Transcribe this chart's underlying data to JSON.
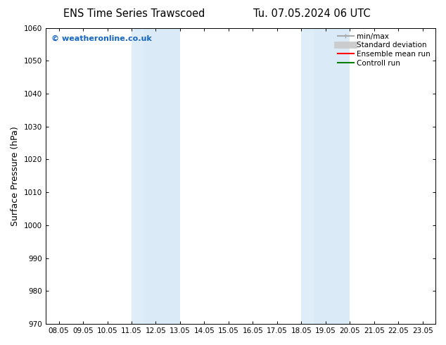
{
  "title_left": "ENS Time Series Trawscoed",
  "title_right": "Tu. 07.05.2024 06 UTC",
  "ylabel": "Surface Pressure (hPa)",
  "xlim": [
    7.5,
    23.583
  ],
  "ylim": [
    970,
    1060
  ],
  "yticks": [
    970,
    980,
    990,
    1000,
    1010,
    1020,
    1030,
    1040,
    1050,
    1060
  ],
  "xticks": [
    8.05,
    9.05,
    10.05,
    11.05,
    12.05,
    13.05,
    14.05,
    15.05,
    16.05,
    17.05,
    18.05,
    19.05,
    20.05,
    21.05,
    22.05,
    23.05
  ],
  "xticklabels": [
    "08.05",
    "09.05",
    "10.05",
    "11.05",
    "12.05",
    "13.05",
    "14.05",
    "15.05",
    "16.05",
    "17.05",
    "18.05",
    "19.05",
    "20.05",
    "21.05",
    "22.05",
    "23.05"
  ],
  "shaded_regions": [
    {
      "x_start": 11.05,
      "x_end": 11.55,
      "color": "#deedf8"
    },
    {
      "x_start": 11.55,
      "x_end": 13.05,
      "color": "#daeaf7"
    },
    {
      "x_start": 18.05,
      "x_end": 18.55,
      "color": "#deedf8"
    },
    {
      "x_start": 18.55,
      "x_end": 20.05,
      "color": "#daeaf7"
    }
  ],
  "background_color": "#ffffff",
  "watermark_text": "© weatheronline.co.uk",
  "watermark_color": "#1565c0",
  "legend_entries": [
    {
      "label": "min/max",
      "color": "#aaaaaa",
      "lw": 1.5,
      "linestyle": "-"
    },
    {
      "label": "Standard deviation",
      "color": "#cccccc",
      "lw": 7,
      "linestyle": "-"
    },
    {
      "label": "Ensemble mean run",
      "color": "#ff0000",
      "lw": 1.5,
      "linestyle": "-"
    },
    {
      "label": "Controll run",
      "color": "#008000",
      "lw": 1.5,
      "linestyle": "-"
    }
  ],
  "tick_color": "#000000",
  "title_fontsize": 10.5,
  "label_fontsize": 9,
  "tick_fontsize": 7.5,
  "legend_fontsize": 7.5,
  "watermark_fontsize": 8
}
